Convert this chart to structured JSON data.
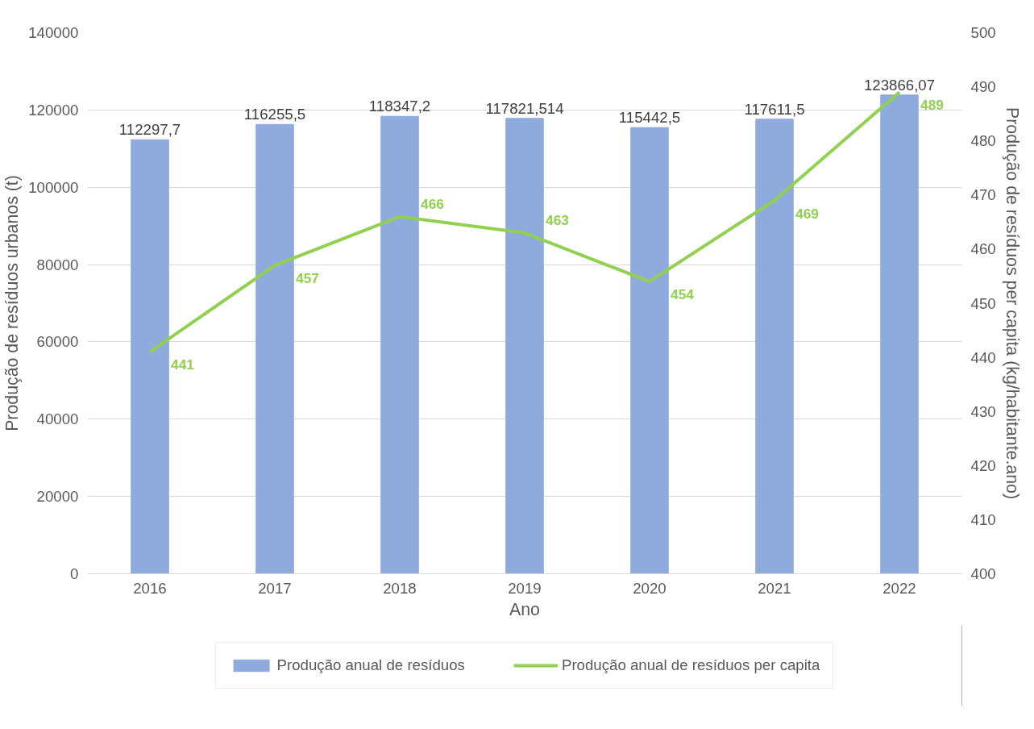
{
  "chart_data": {
    "type": "bar",
    "xlabel": "Ano",
    "ylabel": "Produção de resíduos urbanos (t)",
    "y2label": "Produção de resíduos per capita (kg/habitante.ano)",
    "categories": [
      "2016",
      "2017",
      "2018",
      "2019",
      "2020",
      "2021",
      "2022"
    ],
    "series": [
      {
        "name": "Produção anual de resíduos",
        "color": "#8faadc",
        "values": [
          112297.7,
          116255.5,
          118347.2,
          117821.514,
          115442.5,
          117611.5,
          123866.07
        ],
        "value_labels": [
          "112297,7",
          "116255,5",
          "118347,2",
          "117821,514",
          "115442,5",
          "117611,5",
          "123866,07"
        ]
      },
      {
        "name": "Produção anual de resíduos per capita",
        "type": "line",
        "axis": "y2",
        "color": "#92d050",
        "values": [
          441,
          457,
          466,
          463,
          454,
          469,
          489
        ],
        "value_labels": [
          "441",
          "457",
          "466",
          "463",
          "454",
          "469",
          "489"
        ]
      }
    ],
    "ylim": [
      0,
      140000
    ],
    "yticks": [
      0,
      20000,
      40000,
      60000,
      80000,
      100000,
      120000,
      140000
    ],
    "y2lim": [
      400,
      500
    ],
    "y2ticks": [
      400,
      410,
      420,
      430,
      440,
      450,
      460,
      470,
      480,
      490,
      500
    ],
    "grid": "y",
    "legend": "bottom",
    "line_style": "solid",
    "marker": "none"
  }
}
